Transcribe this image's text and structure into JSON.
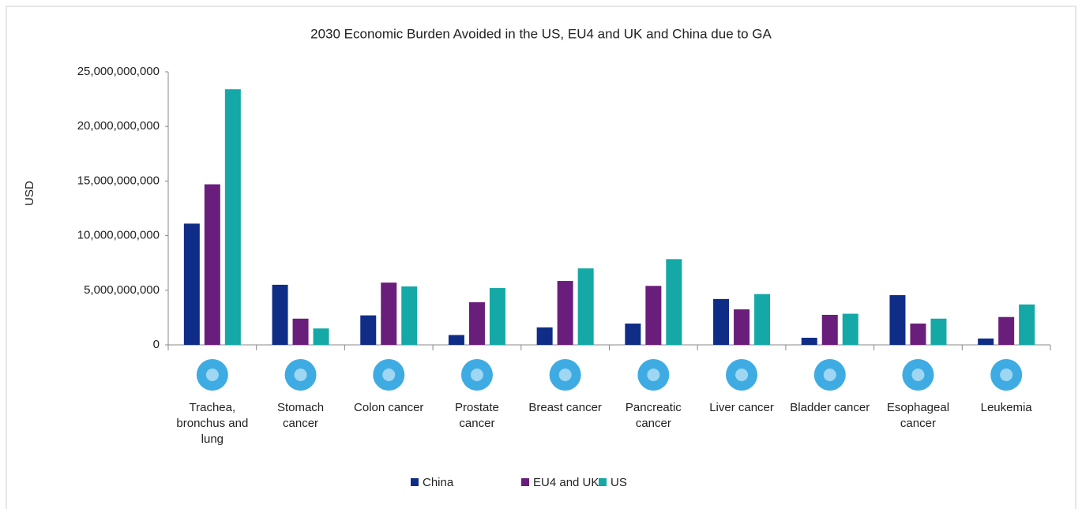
{
  "chart_data": {
    "type": "bar",
    "title": "2030 Economic Burden Avoided in the US, EU4 and UK and China due to GA",
    "y_label": "USD",
    "categories": [
      "Trachea, bronchus and lung",
      "Stomach cancer",
      "Colon cancer",
      "Prostate cancer",
      "Breast cancer",
      "Pancreatic cancer",
      "Liver cancer",
      "Bladder cancer",
      "Esophageal cancer",
      "Leukemia"
    ],
    "series": [
      {
        "name": "China",
        "color": "#0f2d87",
        "values": [
          11100000000,
          5500000000,
          2700000000,
          900000000,
          1600000000,
          1950000000,
          4200000000,
          650000000,
          4550000000,
          580000000
        ]
      },
      {
        "name": "EU4 and UK",
        "color": "#6a1e7c",
        "values": [
          14700000000,
          2400000000,
          5700000000,
          3900000000,
          5850000000,
          5400000000,
          3250000000,
          2750000000,
          1950000000,
          2550000000
        ]
      },
      {
        "name": "US",
        "color": "#14a8a6",
        "values": [
          23400000000,
          1500000000,
          5350000000,
          5200000000,
          7000000000,
          7850000000,
          4650000000,
          2850000000,
          2400000000,
          3700000000
        ]
      }
    ],
    "ylim": [
      0,
      25000000000
    ],
    "yticks": [
      0,
      {
        "value": 5000000000,
        "label": "5,000,000,000"
      },
      {
        "value": 10000000000,
        "label": "10,000,000,000"
      },
      {
        "value": 15000000000,
        "label": "15,000,000,000"
      },
      {
        "value": 20000000000,
        "label": "20,000,000,000"
      },
      {
        "value": 25000000000,
        "label": "25,000,000,000"
      }
    ],
    "legend": "bottom"
  }
}
